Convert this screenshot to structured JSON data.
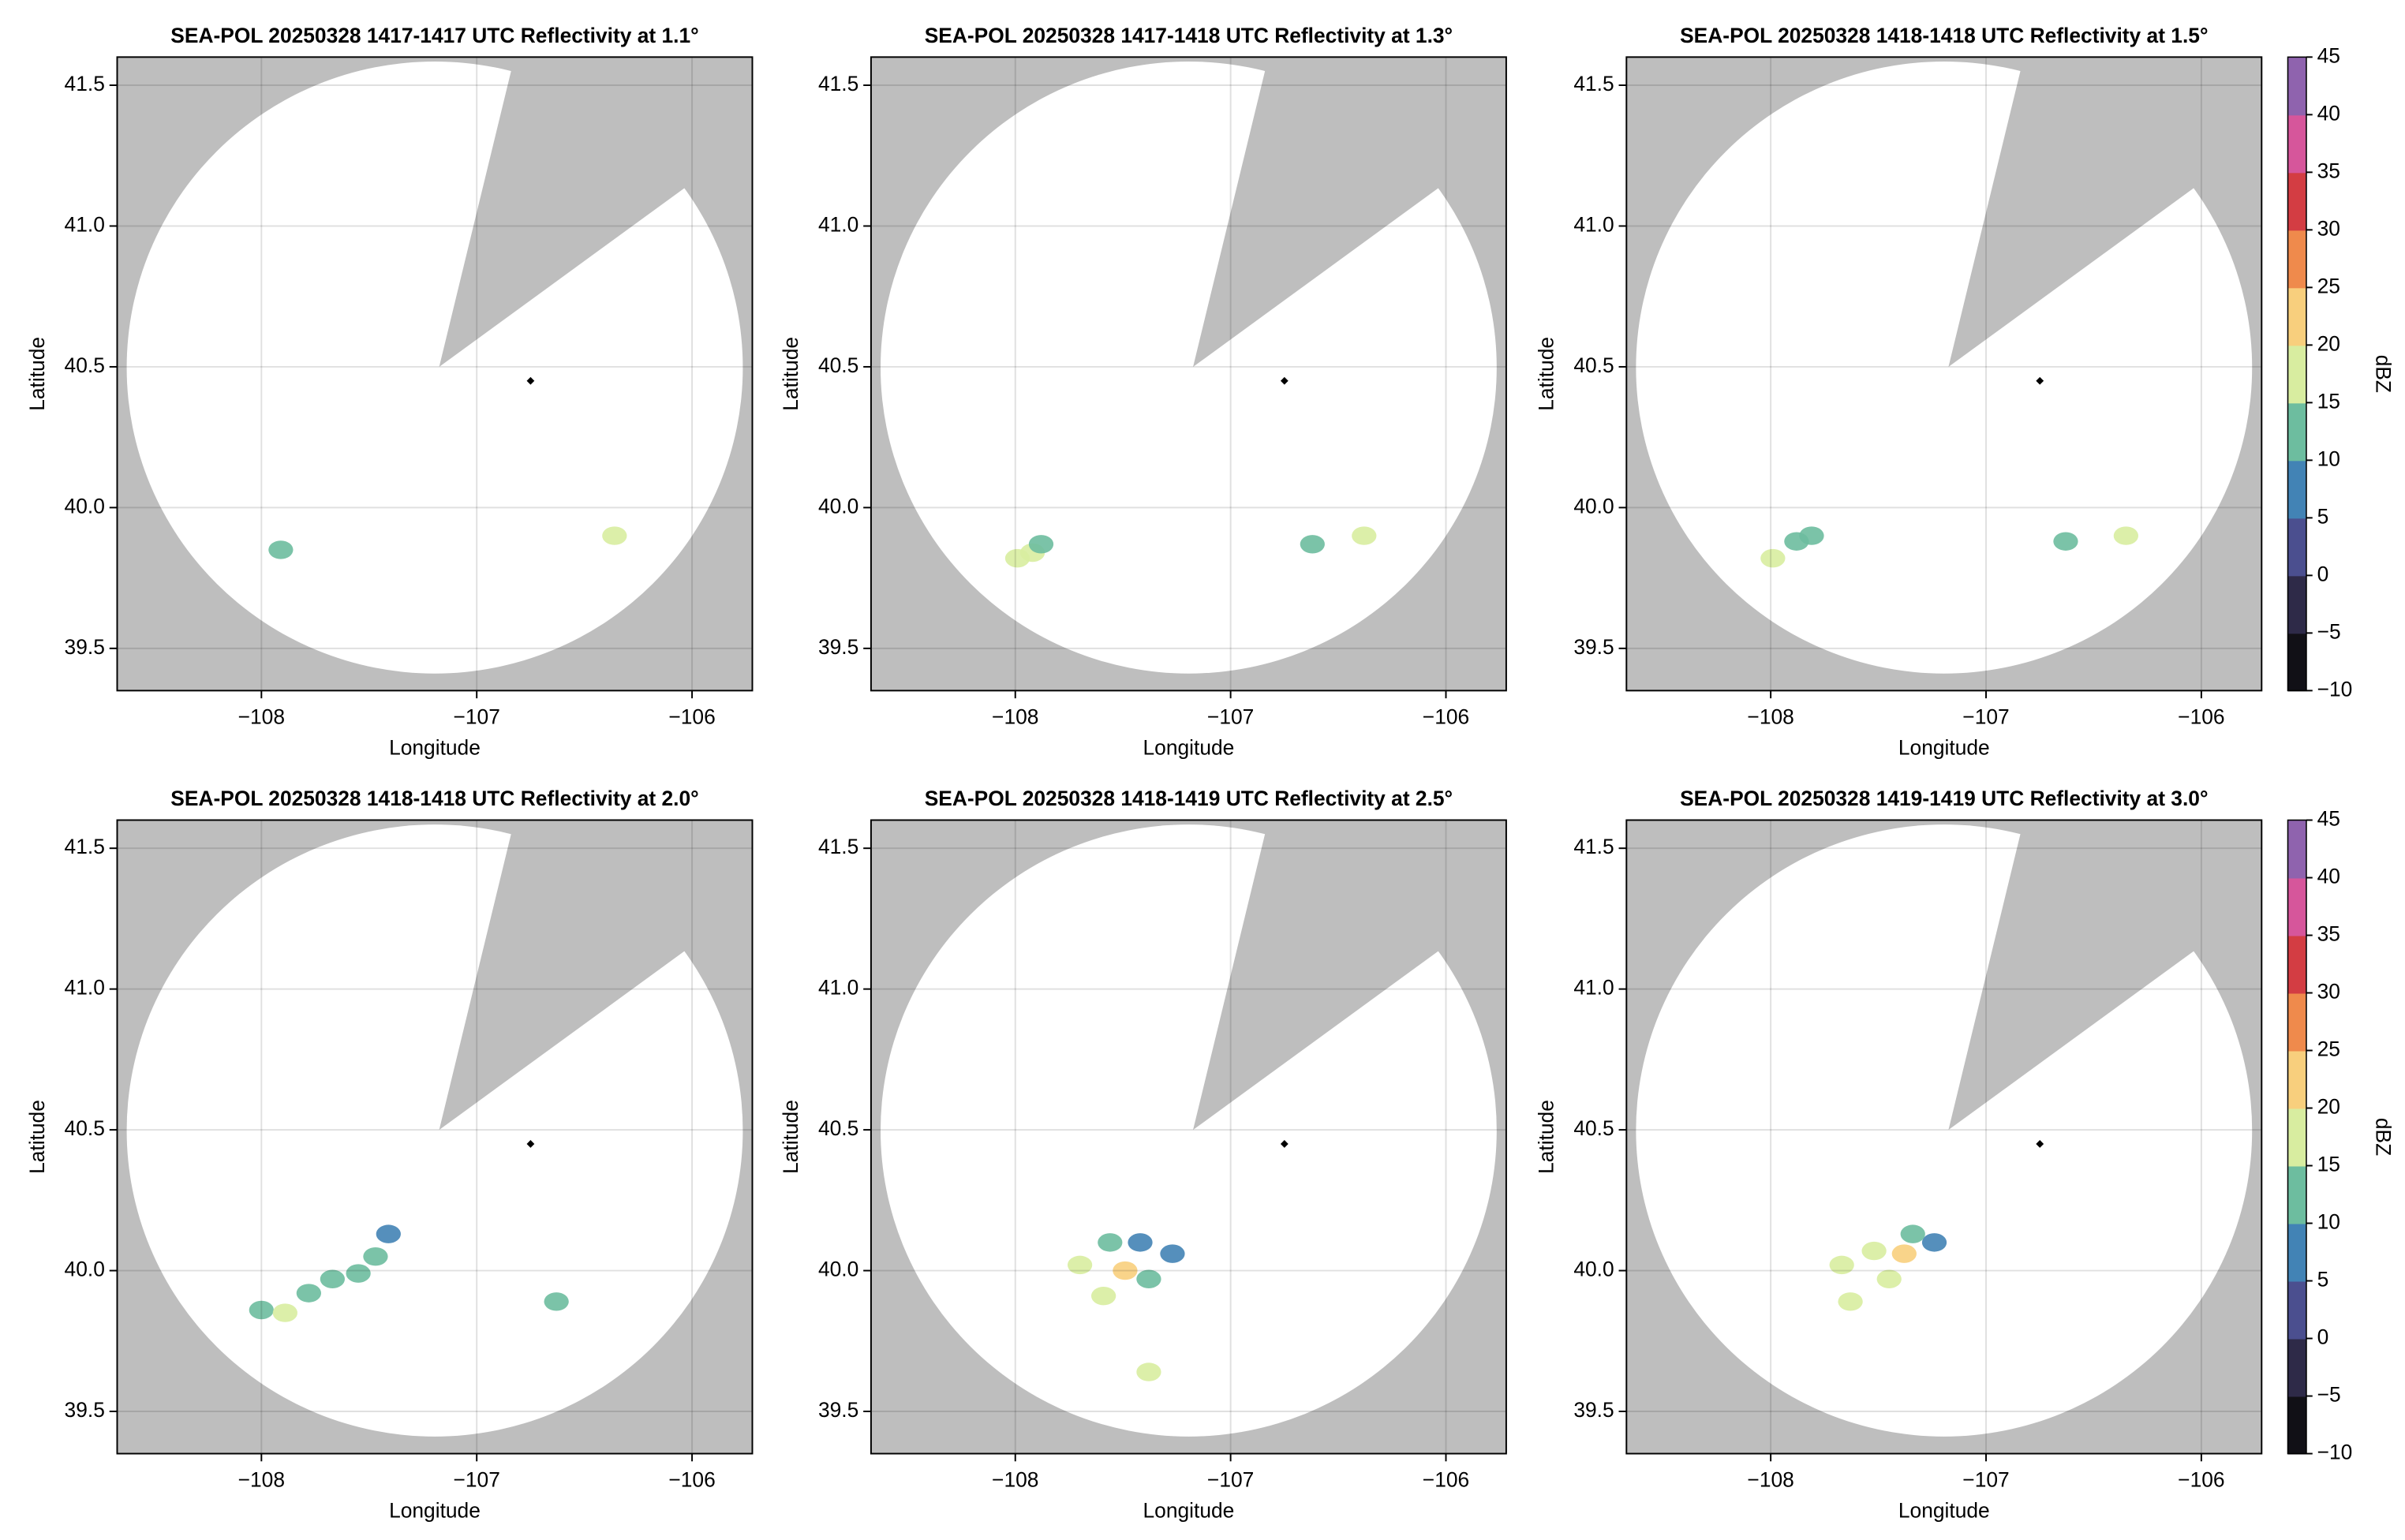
{
  "chart_data": [
    {
      "type": "radar_ppi",
      "title": "SEA-POL 20250328 1417-1417 UTC Reflectivity at 1.1°",
      "xlabel": "Longitude",
      "ylabel": "Latitude",
      "xlim": [
        -108.67,
        -105.72
      ],
      "ylim": [
        39.35,
        41.6
      ],
      "xticks": [
        {
          "value": -108,
          "label": "−108"
        },
        {
          "value": -107,
          "label": "−107"
        },
        {
          "value": -106,
          "label": "−106"
        }
      ],
      "yticks": [
        39.5,
        {
          "value": 40,
          "label": "40.0"
        },
        40.5,
        {
          "value": 41,
          "label": "41.0"
        },
        41.5
      ],
      "grid": true,
      "mask_color": "#bebebe",
      "marker": {
        "x": -106.75,
        "y": 40.45,
        "color": "#000000"
      },
      "echoes": {
        "x": [
          -107.91,
          -106.36
        ],
        "y": [
          39.85,
          39.9
        ],
        "values": [
          14,
          15
        ]
      }
    },
    {
      "type": "radar_ppi",
      "title": "SEA-POL 20250328 1417-1418 UTC Reflectivity at 1.3°",
      "xlabel": "Longitude",
      "ylabel": "Latitude",
      "xlim": [
        -108.67,
        -105.72
      ],
      "ylim": [
        39.35,
        41.6
      ],
      "xticks": [
        {
          "value": -108,
          "label": "−108"
        },
        {
          "value": -107,
          "label": "−107"
        },
        {
          "value": -106,
          "label": "−106"
        }
      ],
      "yticks": [
        39.5,
        {
          "value": 40,
          "label": "40.0"
        },
        40.5,
        {
          "value": 41,
          "label": "41.0"
        },
        41.5
      ],
      "grid": true,
      "mask_color": "#bebebe",
      "marker": {
        "x": -106.75,
        "y": 40.45,
        "color": "#000000"
      },
      "echoes": {
        "x": [
          -107.99,
          -107.92,
          -107.88,
          -106.62,
          -106.38
        ],
        "y": [
          39.82,
          39.84,
          39.87,
          39.87,
          39.9
        ],
        "values": [
          15,
          15,
          14,
          14,
          16
        ]
      }
    },
    {
      "type": "radar_ppi",
      "title": "SEA-POL 20250328 1418-1418 UTC Reflectivity at 1.5°",
      "xlabel": "Longitude",
      "ylabel": "Latitude",
      "xlim": [
        -108.67,
        -105.72
      ],
      "ylim": [
        39.35,
        41.6
      ],
      "xticks": [
        {
          "value": -108,
          "label": "−108"
        },
        {
          "value": -107,
          "label": "−107"
        },
        {
          "value": -106,
          "label": "−106"
        }
      ],
      "yticks": [
        39.5,
        {
          "value": 40,
          "label": "40.0"
        },
        40.5,
        {
          "value": 41,
          "label": "41.0"
        },
        41.5
      ],
      "grid": true,
      "mask_color": "#bebebe",
      "marker": {
        "x": -106.75,
        "y": 40.45,
        "color": "#000000"
      },
      "echoes": {
        "x": [
          -107.99,
          -107.88,
          -107.81,
          -106.63,
          -106.35
        ],
        "y": [
          39.82,
          39.88,
          39.9,
          39.88,
          39.9
        ],
        "values": [
          15,
          14,
          13,
          14,
          15
        ]
      },
      "colorbar": {
        "label": "dBZ",
        "lim": [
          -10,
          45
        ],
        "ticks": [
          {
            "value": -10,
            "label": "−10"
          },
          {
            "value": -5,
            "label": "−5"
          },
          0,
          5,
          10,
          15,
          20,
          25,
          30,
          35,
          40,
          45
        ],
        "colors": [
          "#111016",
          "#2e2a48",
          "#4b4f8f",
          "#4283b5",
          "#6dbd9f",
          "#d8eda0",
          "#f8cf7d",
          "#ef8a4c",
          "#d33d43",
          "#d6569b",
          "#8f63ae"
        ]
      }
    },
    {
      "type": "radar_ppi",
      "title": "SEA-POL 20250328 1418-1418 UTC Reflectivity at 2.0°",
      "xlabel": "Longitude",
      "ylabel": "Latitude",
      "xlim": [
        -108.67,
        -105.72
      ],
      "ylim": [
        39.35,
        41.6
      ],
      "xticks": [
        {
          "value": -108,
          "label": "−108"
        },
        {
          "value": -107,
          "label": "−107"
        },
        {
          "value": -106,
          "label": "−106"
        }
      ],
      "yticks": [
        39.5,
        {
          "value": 40,
          "label": "40.0"
        },
        40.5,
        {
          "value": 41,
          "label": "41.0"
        },
        41.5
      ],
      "grid": true,
      "mask_color": "#bebebe",
      "marker": {
        "x": -106.75,
        "y": 40.45,
        "color": "#000000"
      },
      "echoes": {
        "x": [
          -108.0,
          -107.89,
          -107.78,
          -107.67,
          -107.55,
          -107.47,
          -107.41,
          -106.63
        ],
        "y": [
          39.86,
          39.85,
          39.92,
          39.97,
          39.99,
          40.05,
          40.13,
          39.89
        ],
        "values": [
          14,
          15,
          13,
          14,
          12,
          11,
          8,
          14
        ]
      }
    },
    {
      "type": "radar_ppi",
      "title": "SEA-POL 20250328 1418-1419 UTC Reflectivity at 2.5°",
      "xlabel": "Longitude",
      "ylabel": "Latitude",
      "xlim": [
        -108.67,
        -105.72
      ],
      "ylim": [
        39.35,
        41.6
      ],
      "xticks": [
        {
          "value": -108,
          "label": "−108"
        },
        {
          "value": -107,
          "label": "−107"
        },
        {
          "value": -106,
          "label": "−106"
        }
      ],
      "yticks": [
        39.5,
        {
          "value": 40,
          "label": "40.0"
        },
        40.5,
        {
          "value": 41,
          "label": "41.0"
        },
        41.5
      ],
      "grid": true,
      "mask_color": "#bebebe",
      "marker": {
        "x": -106.75,
        "y": 40.45,
        "color": "#000000"
      },
      "echoes": {
        "x": [
          -107.7,
          -107.56,
          -107.42,
          -107.27,
          -107.59,
          -107.49,
          -107.38,
          -107.38
        ],
        "y": [
          40.02,
          40.1,
          40.1,
          40.06,
          39.91,
          40.0,
          39.97,
          39.64
        ],
        "values": [
          16,
          14,
          9,
          8,
          18,
          20,
          12,
          15
        ]
      }
    },
    {
      "type": "radar_ppi",
      "title": "SEA-POL 20250328 1419-1419 UTC Reflectivity at 3.0°",
      "xlabel": "Longitude",
      "ylabel": "Latitude",
      "xlim": [
        -108.67,
        -105.72
      ],
      "ylim": [
        39.35,
        41.6
      ],
      "xticks": [
        {
          "value": -108,
          "label": "−108"
        },
        {
          "value": -107,
          "label": "−107"
        },
        {
          "value": -106,
          "label": "−106"
        }
      ],
      "yticks": [
        39.5,
        {
          "value": 40,
          "label": "40.0"
        },
        40.5,
        {
          "value": 41,
          "label": "41.0"
        },
        41.5
      ],
      "grid": true,
      "mask_color": "#bebebe",
      "marker": {
        "x": -106.75,
        "y": 40.45,
        "color": "#000000"
      },
      "echoes": {
        "x": [
          -107.67,
          -107.52,
          -107.38,
          -107.24,
          -107.45,
          -107.63,
          -107.34
        ],
        "y": [
          40.02,
          40.07,
          40.06,
          40.1,
          39.97,
          39.89,
          40.13
        ],
        "values": [
          15,
          17,
          22,
          9,
          19,
          16,
          12
        ]
      },
      "colorbar": {
        "label": "dBZ",
        "lim": [
          -10,
          45
        ],
        "ticks": [
          {
            "value": -10,
            "label": "−10"
          },
          {
            "value": -5,
            "label": "−5"
          },
          0,
          5,
          10,
          15,
          20,
          25,
          30,
          35,
          40,
          45
        ],
        "colors": [
          "#111016",
          "#2e2a48",
          "#4b4f8f",
          "#4283b5",
          "#6dbd9f",
          "#d8eda0",
          "#f8cf7d",
          "#ef8a4c",
          "#d33d43",
          "#d6569b",
          "#8f63ae"
        ]
      }
    }
  ]
}
